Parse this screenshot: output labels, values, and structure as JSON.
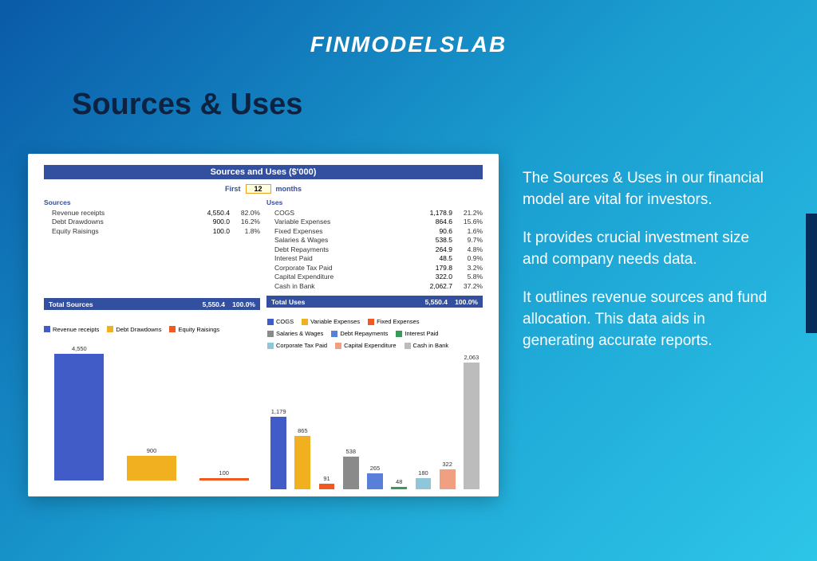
{
  "brand": "FINMODELSLAB",
  "section_title": "Sources & Uses",
  "background": {
    "gradient_from": "#0a5aa8",
    "gradient_mid": "#1a9ed0",
    "gradient_to": "#2dc5e8",
    "title_color": "#0d2140",
    "brand_color": "#ffffff"
  },
  "panel": {
    "title": "Sources and Uses ($'000)",
    "title_bar_color": "#334f9f",
    "period": {
      "prefix": "First",
      "value": "12",
      "suffix": "months",
      "box_border": "#f0a020",
      "box_bg": "#ffffe0"
    },
    "sources": {
      "header": "Sources",
      "rows": [
        {
          "name": "Revenue receipts",
          "amount": "4,550.4",
          "pct": "82.0%"
        },
        {
          "name": "Debt Drawdowns",
          "amount": "900.0",
          "pct": "16.2%"
        },
        {
          "name": "Equity Raisings",
          "amount": "100.0",
          "pct": "1.8%"
        }
      ],
      "total": {
        "label": "Total Sources",
        "amount": "5,550.4",
        "pct": "100.0%"
      }
    },
    "uses": {
      "header": "Uses",
      "rows": [
        {
          "name": "COGS",
          "amount": "1,178.9",
          "pct": "21.2%"
        },
        {
          "name": "Variable Expenses",
          "amount": "864.6",
          "pct": "15.6%"
        },
        {
          "name": "Fixed Expenses",
          "amount": "90.6",
          "pct": "1.6%"
        },
        {
          "name": "Salaries & Wages",
          "amount": "538.5",
          "pct": "9.7%"
        },
        {
          "name": "Debt Repayments",
          "amount": "264.9",
          "pct": "4.8%"
        },
        {
          "name": "Interest Paid",
          "amount": "48.5",
          "pct": "0.9%"
        },
        {
          "name": "Corporate Tax Paid",
          "amount": "179.8",
          "pct": "3.2%"
        },
        {
          "name": "Capital Expenditure",
          "amount": "322.0",
          "pct": "5.8%"
        },
        {
          "name": "Cash in Bank",
          "amount": "2,062.7",
          "pct": "37.2%"
        }
      ],
      "total": {
        "label": "Total Uses",
        "amount": "5,550.4",
        "pct": "100.0%"
      }
    },
    "total_bar_color": "#334f9f"
  },
  "chart_sources": {
    "type": "bar",
    "ymax": 4550,
    "bars": [
      {
        "label": "Revenue receipts",
        "value": 4550,
        "display": "4,550",
        "color": "#425cc7"
      },
      {
        "label": "Debt Drawdowns",
        "value": 900,
        "display": "900",
        "color": "#f0b020"
      },
      {
        "label": "Equity Raisings",
        "value": 100,
        "display": "100",
        "color": "#f05a20"
      }
    ],
    "legend_font": 7.5
  },
  "chart_uses": {
    "type": "bar",
    "ymax": 2063,
    "bars": [
      {
        "label": "COGS",
        "value": 1179,
        "display": "1,179",
        "color": "#425cc7"
      },
      {
        "label": "Variable Expenses",
        "value": 865,
        "display": "865",
        "color": "#f0b020"
      },
      {
        "label": "Fixed Expenses",
        "value": 91,
        "display": "91",
        "color": "#f05a20"
      },
      {
        "label": "Salaries & Wages",
        "value": 538,
        "display": "538",
        "color": "#8a8a8a"
      },
      {
        "label": "Debt Repayments",
        "value": 265,
        "display": "265",
        "color": "#5a7fd8"
      },
      {
        "label": "Interest Paid",
        "value": 48,
        "display": "48",
        "color": "#3a9a5a"
      },
      {
        "label": "Corporate Tax Paid",
        "value": 180,
        "display": "180",
        "color": "#8fc6d8"
      },
      {
        "label": "Capital Expenditure",
        "value": 322,
        "display": "322",
        "color": "#f0a080"
      },
      {
        "label": "Cash in Bank",
        "value": 2063,
        "display": "2,063",
        "color": "#bcbcbc"
      }
    ],
    "legend_font": 7.5
  },
  "copy": {
    "p1": "The Sources & Uses in our financial model are vital for investors.",
    "p2": "It provides crucial investment size and company needs data.",
    "p3": "It outlines revenue sources and fund allocation. This data aids in generating accurate reports."
  },
  "accent_color": "#082c5a"
}
